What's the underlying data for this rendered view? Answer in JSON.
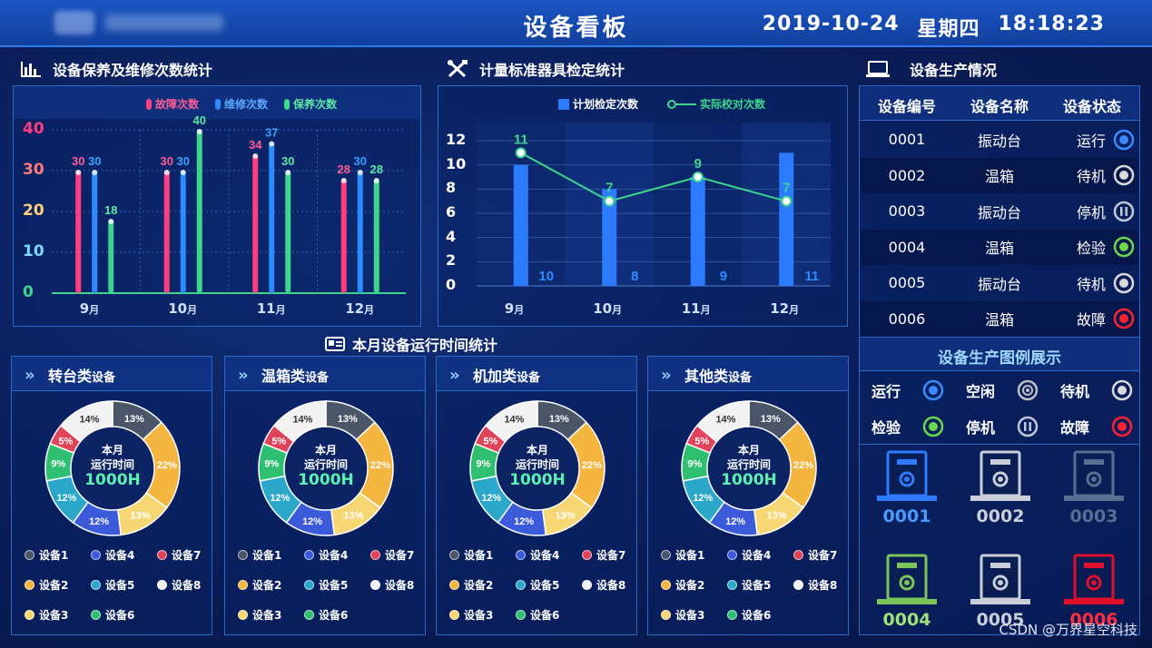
{
  "header": {
    "title": "设备看板",
    "date": "2019-10-24",
    "weekday": "星期四",
    "time": "18:18:23"
  },
  "maintenance_chart": {
    "title": "设备保养及维修次数统计",
    "legend": [
      {
        "name": "故障次数",
        "color": "#ff3d7f"
      },
      {
        "name": "维修次数",
        "color": "#2c8cff"
      },
      {
        "name": "保养次数",
        "color": "#3dd68c"
      }
    ],
    "y_ticks": [
      {
        "value": "40",
        "color": "#ff3d7f"
      },
      {
        "value": "30",
        "color": "#ff7a7a"
      },
      {
        "value": "20",
        "color": "#ffd27a"
      },
      {
        "value": "10",
        "color": "#7fd8ff"
      },
      {
        "value": "0",
        "color": "#3dd68c"
      }
    ],
    "months": [
      {
        "num": "9",
        "unit": "月"
      },
      {
        "num": "10",
        "unit": "月"
      },
      {
        "num": "11",
        "unit": "月"
      },
      {
        "num": "12",
        "unit": "月"
      }
    ]
  },
  "calibration_chart": {
    "title": "计量标准器具检定统计",
    "legend_bar": "计划检定次数",
    "legend_line": "实际校对次数",
    "y_ticks": [
      "12",
      "10",
      "8",
      "6",
      "4",
      "2",
      "0"
    ],
    "months": [
      {
        "num": "9",
        "unit": "月"
      },
      {
        "num": "10",
        "unit": "月"
      },
      {
        "num": "11",
        "unit": "月"
      },
      {
        "num": "12",
        "unit": "月"
      }
    ]
  },
  "chart_data": [
    {
      "type": "bar",
      "title": "设备保养及维修次数统计",
      "categories": [
        "9月",
        "10月",
        "11月",
        "12月"
      ],
      "series": [
        {
          "name": "故障次数",
          "values": [
            30,
            30,
            34,
            28
          ]
        },
        {
          "name": "维修次数",
          "values": [
            30,
            30,
            37,
            30
          ]
        },
        {
          "name": "保养次数",
          "values": [
            18,
            40,
            30,
            28
          ]
        }
      ],
      "ylim": [
        0,
        40
      ],
      "grid": true,
      "legend": "top"
    },
    {
      "type": "bar",
      "title": "计量标准器具检定统计",
      "categories": [
        "9月",
        "10月",
        "11月",
        "12月"
      ],
      "series": [
        {
          "name": "计划检定次数",
          "type": "bar",
          "values": [
            10,
            8,
            9,
            11
          ]
        },
        {
          "name": "实际校对次数",
          "type": "line",
          "values": [
            11,
            7,
            9,
            7
          ]
        }
      ],
      "ylim": [
        0,
        12
      ],
      "grid": true,
      "legend": "top"
    },
    {
      "type": "pie",
      "title": "转台类设备",
      "labels": [
        "设备1",
        "设备2",
        "设备3",
        "设备4",
        "设备5",
        "设备6",
        "设备7",
        "设备8"
      ],
      "values": [
        13,
        22,
        13,
        12,
        12,
        9,
        5,
        14
      ],
      "center_text": [
        "本月",
        "运行时间",
        "1000H"
      ]
    },
    {
      "type": "pie",
      "title": "温箱类设备",
      "labels": [
        "设备1",
        "设备2",
        "设备3",
        "设备4",
        "设备5",
        "设备6",
        "设备7",
        "设备8"
      ],
      "values": [
        13,
        22,
        13,
        12,
        12,
        9,
        5,
        14
      ],
      "center_text": [
        "本月",
        "运行时间",
        "1000H"
      ]
    },
    {
      "type": "pie",
      "title": "机加类设备",
      "labels": [
        "设备1",
        "设备2",
        "设备3",
        "设备4",
        "设备5",
        "设备6",
        "设备7",
        "设备8"
      ],
      "values": [
        13,
        22,
        13,
        12,
        12,
        9,
        5,
        14
      ],
      "center_text": [
        "本月",
        "运行时间",
        "1000H"
      ]
    },
    {
      "type": "pie",
      "title": "其他类设备",
      "labels": [
        "设备1",
        "设备2",
        "设备3",
        "设备4",
        "设备5",
        "设备6",
        "设备7",
        "设备8"
      ],
      "values": [
        13,
        22,
        13,
        12,
        12,
        9,
        5,
        14
      ],
      "center_text": [
        "本月",
        "运行时间",
        "1000H"
      ]
    }
  ],
  "runtime": {
    "title": "本月设备运行时间统计",
    "center_l1": "本月",
    "center_l2": "运行时间",
    "center_l3": "1000H",
    "segment_colors": [
      "#4a5568",
      "#f5b640",
      "#f7d774",
      "#3b5bdb",
      "#2aa7c9",
      "#2fbf71",
      "#e0445a",
      "#f2f2f2"
    ],
    "percent_labels": [
      "13%",
      "22%",
      "13%",
      "12%",
      "12%",
      "9%",
      "5%",
      "14%"
    ],
    "cards": [
      {
        "name": "转台类",
        "suffix": "设备"
      },
      {
        "name": "温箱类",
        "suffix": "设备"
      },
      {
        "name": "机加类",
        "suffix": "设备"
      },
      {
        "name": "其他类",
        "suffix": "设备"
      }
    ],
    "legend": [
      "设备1",
      "设备4",
      "设备7",
      "设备2",
      "设备5",
      "设备8",
      "设备3",
      "设备6"
    ]
  },
  "production": {
    "title": "设备生产情况",
    "columns": [
      "设备编号",
      "设备名称",
      "设备状态"
    ],
    "rows": [
      {
        "id": "0001",
        "name": "振动台",
        "status": "运行",
        "status_color": "#3a8bff"
      },
      {
        "id": "0002",
        "name": "温箱",
        "status": "待机",
        "status_color": "#d9d9d9"
      },
      {
        "id": "0003",
        "name": "振动台",
        "status": "停机",
        "status_color": "#c0c8d8"
      },
      {
        "id": "0004",
        "name": "温箱",
        "status": "检验",
        "status_color": "#6ad84a"
      },
      {
        "id": "0005",
        "name": "振动台",
        "status": "待机",
        "status_color": "#d9d9d9"
      },
      {
        "id": "0006",
        "name": "温箱",
        "status": "故障",
        "status_color": "#ff2030"
      }
    ],
    "legend_title": "设备生产图例展示",
    "legend": [
      {
        "label": "运行",
        "color": "#3a8bff",
        "icon": "dot-icon"
      },
      {
        "label": "空闲",
        "color": "#bfbfbf",
        "icon": "ring-icon"
      },
      {
        "label": "待机",
        "color": "#d9d9d9",
        "icon": "dot-icon"
      },
      {
        "label": "检验",
        "color": "#6ad84a",
        "icon": "dot-icon"
      },
      {
        "label": "停机",
        "color": "#c0c8d8",
        "icon": "pause-icon"
      },
      {
        "label": "故障",
        "color": "#ff2030",
        "icon": "dot-icon"
      }
    ],
    "devices": [
      {
        "id": "0001",
        "color": "#2f7bff",
        "text_color": "#4a9bff"
      },
      {
        "id": "0002",
        "color": "#c9ced8",
        "text_color": "#c9ced8"
      },
      {
        "id": "0003",
        "color": "#5a6e92",
        "text_color": "#5a6e92"
      },
      {
        "id": "0004",
        "color": "#7cc45a",
        "text_color": "#9ee27a"
      },
      {
        "id": "0005",
        "color": "#c9ced8",
        "text_color": "#c9ced8"
      },
      {
        "id": "0006",
        "color": "#e0102a",
        "text_color": "#ff2d3f"
      }
    ]
  },
  "footer": {
    "watermark": "CSDN @万界星空科技"
  }
}
